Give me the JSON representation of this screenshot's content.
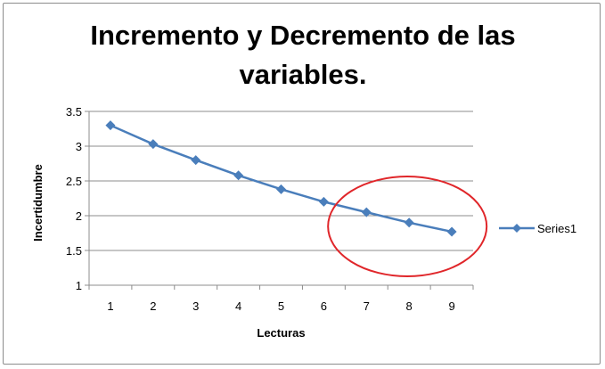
{
  "chart_data": {
    "type": "line",
    "title_line1": "Incremento y Decremento de las",
    "title_line2": "variables.",
    "xlabel": "Lecturas",
    "ylabel": "Incertidumbre",
    "categories": [
      "1",
      "2",
      "3",
      "4",
      "5",
      "6",
      "7",
      "8",
      "9"
    ],
    "ylim": [
      1,
      3.5
    ],
    "yticks": [
      "1",
      "1.5",
      "2",
      "2.5",
      "3",
      "3.5"
    ],
    "series": [
      {
        "name": "Series1",
        "color": "#4a7ebb",
        "values": [
          3.3,
          3.03,
          2.8,
          2.58,
          2.38,
          2.2,
          2.05,
          1.9,
          1.77
        ]
      }
    ],
    "grid": true,
    "legend": "right",
    "annotation": {
      "shape": "ellipse",
      "color": "#e0262a",
      "around_categories": [
        "7",
        "8",
        "9"
      ]
    }
  }
}
